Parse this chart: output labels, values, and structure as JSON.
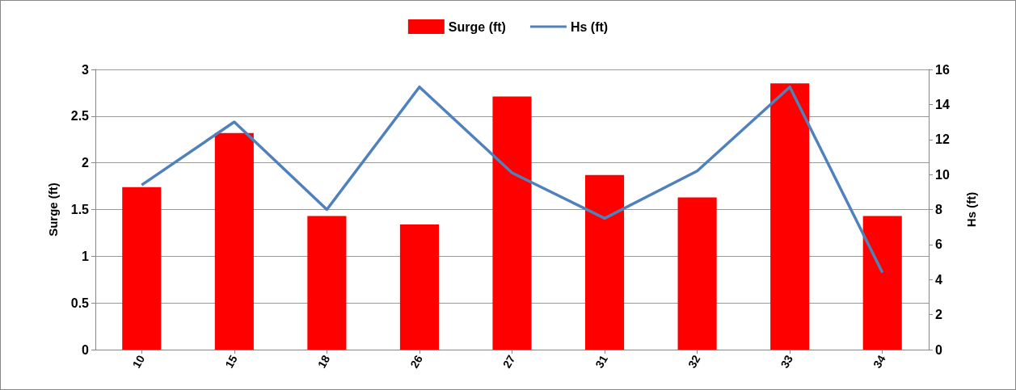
{
  "chart_data": {
    "type": "bar",
    "categories": [
      "10",
      "15",
      "18",
      "26",
      "27",
      "31",
      "32",
      "33",
      "34"
    ],
    "series": [
      {
        "name": "Surge (ft)",
        "color": "#ff0000",
        "values": [
          1.74,
          2.32,
          1.43,
          1.34,
          2.71,
          1.87,
          1.63,
          2.85,
          1.43
        ]
      },
      {
        "name": "Hs (ft)",
        "type": "line",
        "axis": "y2",
        "color": "#4f81bd",
        "marker": "none",
        "values": [
          9.4,
          13.0,
          8.0,
          15.0,
          10.1,
          7.5,
          10.2,
          15.0,
          4.4
        ]
      }
    ],
    "ylabel": "Surge (ft)",
    "y2label": "Hs (ft)",
    "ylim": [
      0,
      3
    ],
    "yticks": [
      0,
      0.5,
      1,
      1.5,
      2,
      2.5,
      3
    ],
    "y2lim": [
      0,
      16
    ],
    "y2ticks": [
      0,
      2,
      4,
      6,
      8,
      10,
      12,
      14,
      16
    ],
    "grid": "y",
    "legend": "top"
  }
}
